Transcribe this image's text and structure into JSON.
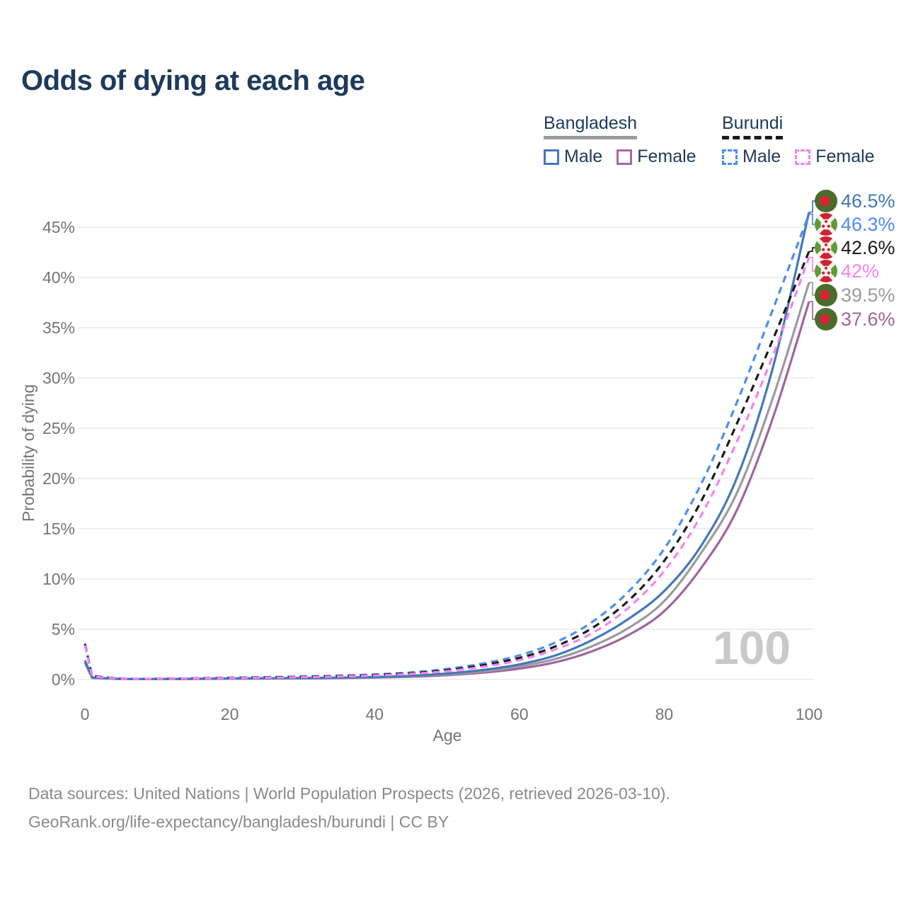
{
  "title": "Odds of dying at each age",
  "legend": {
    "groups": [
      {
        "name": "Bangladesh",
        "line_style": "solid",
        "underline_color": "#9b9b9b",
        "items": [
          {
            "label": "Male",
            "color": "#4478ba",
            "dashed": false
          },
          {
            "label": "Female",
            "color": "#a869a5",
            "dashed": false
          }
        ]
      },
      {
        "name": "Burundi",
        "line_style": "dashed",
        "underline_color": "#1a1a1a",
        "items": [
          {
            "label": "Male",
            "color": "#4d8df2",
            "dashed": true
          },
          {
            "label": "Female",
            "color": "#f583f0",
            "dashed": true
          }
        ]
      }
    ]
  },
  "chart_data": {
    "type": "line",
    "title": "Odds of dying at each age",
    "xlabel": "Age",
    "ylabel": "Probability of dying",
    "watermark": "100",
    "xlim": [
      0,
      100
    ],
    "ylim_percent": [
      0,
      48
    ],
    "x_ticks": [
      0,
      20,
      40,
      60,
      80,
      100
    ],
    "y_ticks_percent": [
      0,
      5,
      10,
      15,
      20,
      25,
      30,
      35,
      40,
      45
    ],
    "grid": "horizontal-only",
    "legend_position": "top-right",
    "ages": [
      0,
      1,
      5,
      10,
      15,
      20,
      25,
      30,
      35,
      40,
      45,
      50,
      55,
      60,
      65,
      70,
      75,
      80,
      85,
      90,
      95,
      100
    ],
    "series": [
      {
        "name": "Bangladesh Male",
        "country": "Bangladesh",
        "sex": "Male",
        "color": "#4478ba",
        "dashed": false,
        "z": 3,
        "flag": "bangladesh",
        "end_label": "46.5%",
        "end_value_percent": 46.5,
        "values_percent": [
          1.9,
          0.2,
          0.06,
          0.05,
          0.07,
          0.11,
          0.13,
          0.15,
          0.18,
          0.25,
          0.37,
          0.6,
          0.95,
          1.5,
          2.4,
          3.9,
          6.0,
          8.8,
          13.2,
          20.0,
          31.0,
          46.5
        ]
      },
      {
        "name": "Burundi Male",
        "country": "Burundi",
        "sex": "Male",
        "color": "#4d8df2",
        "dashed": true,
        "z": 4,
        "flag": "burundi",
        "end_label": "46.3%",
        "end_value_percent": 46.3,
        "values_percent": [
          3.6,
          0.35,
          0.1,
          0.08,
          0.12,
          0.18,
          0.24,
          0.3,
          0.38,
          0.5,
          0.7,
          1.05,
          1.6,
          2.4,
          3.7,
          5.7,
          8.7,
          13.0,
          19.3,
          27.5,
          36.8,
          46.3
        ]
      },
      {
        "name": "Burundi",
        "country": "Burundi",
        "sex": "Both",
        "color": "#1a1a1a",
        "dashed": true,
        "z": 5,
        "flag": "burundi",
        "end_label": "42.6%",
        "end_value_percent": 42.6,
        "values_percent": [
          3.5,
          0.33,
          0.09,
          0.07,
          0.11,
          0.16,
          0.21,
          0.27,
          0.34,
          0.45,
          0.63,
          0.93,
          1.42,
          2.15,
          3.3,
          5.1,
          7.8,
          11.8,
          17.6,
          25.4,
          33.8,
          42.6
        ]
      },
      {
        "name": "Burundi Female",
        "country": "Burundi",
        "sex": "Female",
        "color": "#f583f0",
        "dashed": true,
        "z": 6,
        "flag": "burundi",
        "end_label": "42%",
        "end_value_percent": 42.0,
        "values_percent": [
          3.4,
          0.3,
          0.08,
          0.07,
          0.1,
          0.14,
          0.18,
          0.23,
          0.3,
          0.4,
          0.56,
          0.83,
          1.27,
          1.93,
          3.0,
          4.6,
          7.1,
          10.8,
          16.2,
          23.6,
          32.2,
          42.0
        ]
      },
      {
        "name": "Bangladesh",
        "country": "Bangladesh",
        "sex": "Both",
        "color": "#9b9b9b",
        "dashed": false,
        "z": 2,
        "flag": "bangladesh",
        "end_label": "39.5%",
        "end_value_percent": 39.5,
        "values_percent": [
          1.75,
          0.18,
          0.055,
          0.045,
          0.06,
          0.09,
          0.11,
          0.13,
          0.16,
          0.22,
          0.32,
          0.52,
          0.82,
          1.3,
          2.05,
          3.3,
          5.1,
          7.8,
          12.5,
          18.5,
          28.0,
          39.5
        ]
      },
      {
        "name": "Bangladesh Female",
        "country": "Bangladesh",
        "sex": "Female",
        "color": "#a0659f",
        "dashed": false,
        "z": 1,
        "flag": "bangladesh",
        "end_label": "37.6%",
        "end_value_percent": 37.6,
        "values_percent": [
          1.65,
          0.16,
          0.05,
          0.04,
          0.055,
          0.08,
          0.1,
          0.115,
          0.14,
          0.19,
          0.27,
          0.43,
          0.68,
          1.08,
          1.72,
          2.8,
          4.4,
          6.8,
          11.0,
          16.8,
          26.0,
          37.6
        ]
      }
    ],
    "colors": {
      "grid": "#eaeaea",
      "axis_text": "#757575",
      "watermark": "#c9c9c9",
      "flag_bangladesh_green": "#4a6c2c",
      "flag_bangladesh_red": "#dc2038",
      "flag_burundi_red": "#cf2233",
      "flag_burundi_green": "#5f9a38",
      "flag_burundi_white": "#f5f2ee"
    }
  },
  "footer": {
    "line1": "Data sources: United Nations | World Population Prospects (2026, retrieved 2026-03-10).",
    "line2": "GeoRank.org/life-expectancy/bangladesh/burundi | CC BY"
  }
}
